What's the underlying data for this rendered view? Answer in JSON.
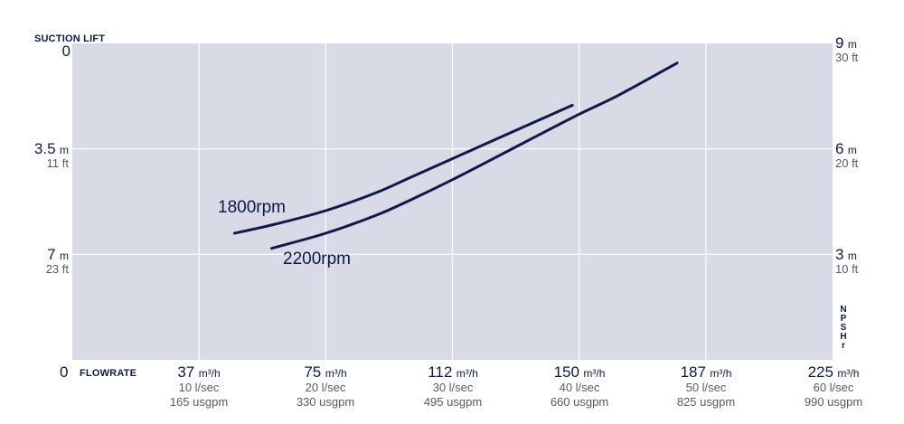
{
  "header": {
    "left_axis_title": "SUCTION LIFT",
    "right_axis_title": "NPSHr",
    "x_axis_title": "FLOWRATE"
  },
  "colors": {
    "plot_background": "#d8dbe6",
    "grid": "#ffffff",
    "line": "#0d1a4c",
    "text": "#0b1a4a",
    "subtext": "#555b66"
  },
  "left_axis": [
    {
      "value": "0",
      "unit": "",
      "alt": ""
    },
    {
      "value": "3.5",
      "unit": "m",
      "alt": "11 ft"
    },
    {
      "value": "7",
      "unit": "m",
      "alt": "23 ft"
    }
  ],
  "right_axis": [
    {
      "value": "9",
      "unit": "m",
      "alt": "30 ft"
    },
    {
      "value": "6",
      "unit": "m",
      "alt": "20 ft"
    },
    {
      "value": "3",
      "unit": "m",
      "alt": "10 ft"
    }
  ],
  "x_origin_label": "0",
  "x_ticks": [
    {
      "value": "37",
      "unit": "m³/h",
      "lsec": "10 l/sec",
      "usgpm": "165 usgpm"
    },
    {
      "value": "75",
      "unit": "m³/h",
      "lsec": "20 l/sec",
      "usgpm": "330 usgpm"
    },
    {
      "value": "112",
      "unit": "m³/h",
      "lsec": "30 l/sec",
      "usgpm": "495 usgpm"
    },
    {
      "value": "150",
      "unit": "m³/h",
      "lsec": "40 l/sec",
      "usgpm": "660 usgpm"
    },
    {
      "value": "187",
      "unit": "m³/h",
      "lsec": "50 l/sec",
      "usgpm": "825 usgpm"
    },
    {
      "value": "225",
      "unit": "m³/h",
      "lsec": "60 l/sec",
      "usgpm": "990 usgpm"
    }
  ],
  "chart_data": {
    "type": "line",
    "title": "",
    "xlabel": "FLOWRATE",
    "ylabel": "SUCTION LIFT",
    "y2label": "NPSHr",
    "xlim": [
      0,
      225
    ],
    "ylim": [
      0,
      10.5
    ],
    "y_inverted": true,
    "grid": true,
    "series": [
      {
        "name": "1800rpm",
        "x": [
          48,
          60,
          75,
          90,
          100,
          112,
          125,
          137,
          148
        ],
        "y": [
          6.3,
          6.0,
          5.55,
          4.95,
          4.45,
          3.85,
          3.2,
          2.6,
          2.05
        ]
      },
      {
        "name": "2200rpm",
        "x": [
          59,
          75,
          90,
          100,
          112,
          125,
          137,
          150,
          162,
          179
        ],
        "y": [
          6.8,
          6.3,
          5.7,
          5.2,
          4.55,
          3.8,
          3.1,
          2.35,
          1.7,
          0.65
        ]
      }
    ]
  }
}
